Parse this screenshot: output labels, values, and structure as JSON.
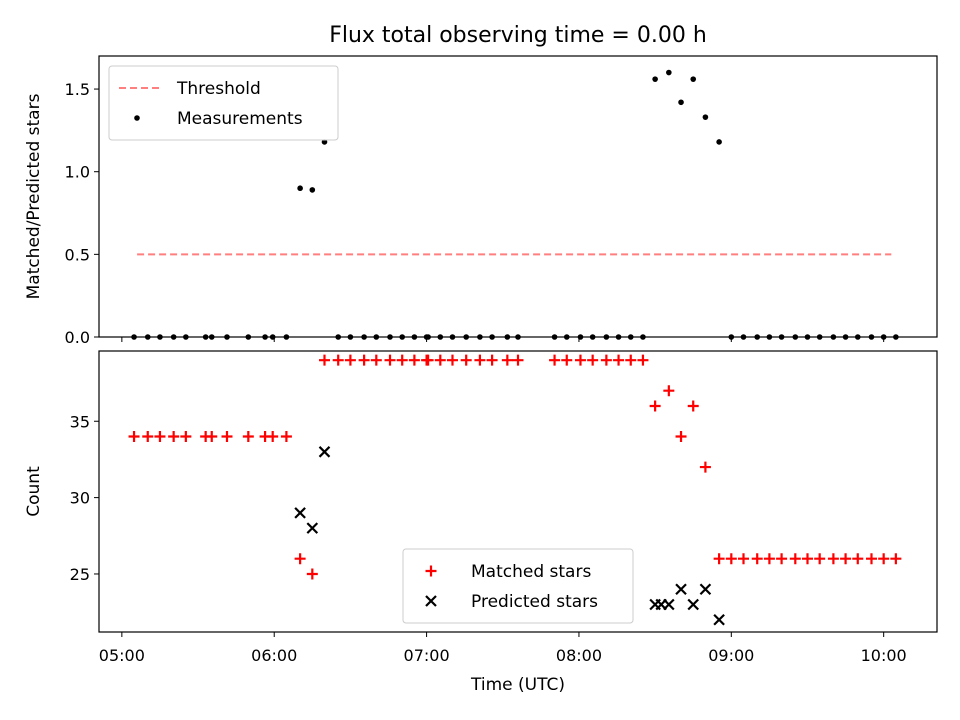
{
  "chart_data": {
    "title": "Flux total observing time = 0.00 h",
    "xlabel": "Time (UTC)",
    "x_ticks": [
      "05:00",
      "06:00",
      "07:00",
      "08:00",
      "09:00",
      "10:00"
    ],
    "x_unit": "hours UTC",
    "x_range": [
      4.85,
      10.35
    ],
    "panels": [
      {
        "type": "scatter",
        "ylabel": "Matched/Predicted stars",
        "ylim": [
          0,
          1.7
        ],
        "yticks": [
          0.0,
          0.5,
          1.0,
          1.5
        ],
        "yticklabels": [
          "0.0",
          "0.5",
          "1.0",
          "1.5"
        ],
        "legend_position": "upper-left",
        "series": [
          {
            "name": "Threshold",
            "kind": "line",
            "color": "#ff7f7f",
            "dash": "dashed",
            "x": [
              5.1,
              10.05
            ],
            "y": [
              0.5,
              0.5
            ]
          },
          {
            "name": "Measurements",
            "kind": "scatter",
            "color": "#000000",
            "marker": "dot",
            "x": [
              5.08,
              5.17,
              5.25,
              5.34,
              5.42,
              5.55,
              5.59,
              5.69,
              5.83,
              5.94,
              5.99,
              6.08,
              6.17,
              6.25,
              6.33,
              6.42,
              6.5,
              6.59,
              6.67,
              6.76,
              6.84,
              6.92,
              7.0,
              7.01,
              7.09,
              7.17,
              7.26,
              7.35,
              7.43,
              7.53,
              7.6,
              7.84,
              7.92,
              8.01,
              8.09,
              8.18,
              8.26,
              8.34,
              8.42,
              8.5,
              8.59,
              8.67,
              8.75,
              8.83,
              8.92,
              9.0,
              9.08,
              9.17,
              9.25,
              9.33,
              9.42,
              9.5,
              9.58,
              9.67,
              9.75,
              9.83,
              9.92,
              10.0,
              10.08
            ],
            "y": [
              0,
              0,
              0,
              0,
              0,
              0,
              0,
              0,
              0,
              0,
              0,
              0,
              0.9,
              0.89,
              1.18,
              0,
              0,
              0,
              0,
              0,
              0,
              0,
              0,
              0,
              0,
              0,
              0,
              0,
              0,
              0,
              0,
              0,
              0,
              0,
              0,
              0,
              0,
              0,
              0,
              1.56,
              1.6,
              1.42,
              1.56,
              1.33,
              1.18,
              0,
              0,
              0,
              0,
              0,
              0,
              0,
              0,
              0,
              0,
              0,
              0,
              0,
              0
            ]
          }
        ]
      },
      {
        "type": "scatter",
        "ylabel": "Count",
        "ylim": [
          21.2,
          39.6
        ],
        "yticks": [
          25,
          30,
          35
        ],
        "yticklabels": [
          "25",
          "30",
          "35"
        ],
        "legend_position": "lower-center",
        "series": [
          {
            "name": "Matched stars",
            "kind": "scatter",
            "color": "#ff0000",
            "marker": "plus",
            "x": [
              5.08,
              5.17,
              5.25,
              5.34,
              5.42,
              5.55,
              5.59,
              5.69,
              5.83,
              5.94,
              5.99,
              6.08,
              6.17,
              6.25,
              6.33,
              6.42,
              6.5,
              6.59,
              6.67,
              6.76,
              6.84,
              6.92,
              7.0,
              7.01,
              7.09,
              7.17,
              7.26,
              7.35,
              7.43,
              7.53,
              7.6,
              7.84,
              7.92,
              8.01,
              8.09,
              8.18,
              8.26,
              8.34,
              8.42,
              8.5,
              8.59,
              8.67,
              8.75,
              8.83,
              8.92,
              9.0,
              9.08,
              9.17,
              9.25,
              9.33,
              9.42,
              9.5,
              9.58,
              9.67,
              9.75,
              9.83,
              9.92,
              10.0,
              10.08
            ],
            "y": [
              34,
              34,
              34,
              34,
              34,
              34,
              34,
              34,
              34,
              34,
              34,
              34,
              26,
              25,
              39,
              39,
              39,
              39,
              39,
              39,
              39,
              39,
              39,
              39,
              39,
              39,
              39,
              39,
              39,
              39,
              39,
              39,
              39,
              39,
              39,
              39,
              39,
              39,
              39,
              36,
              37,
              34,
              36,
              32,
              26,
              26,
              26,
              26,
              26,
              26,
              26,
              26,
              26,
              26,
              26,
              26,
              26,
              26,
              26
            ]
          },
          {
            "name": "Predicted stars",
            "kind": "scatter",
            "color": "#000000",
            "marker": "cross",
            "x": [
              6.17,
              6.25,
              6.33,
              8.5,
              8.54,
              8.59,
              8.67,
              8.75,
              8.83,
              8.92
            ],
            "y": [
              29,
              28,
              33,
              23,
              23,
              23,
              24,
              23,
              24,
              22
            ]
          }
        ]
      }
    ]
  }
}
